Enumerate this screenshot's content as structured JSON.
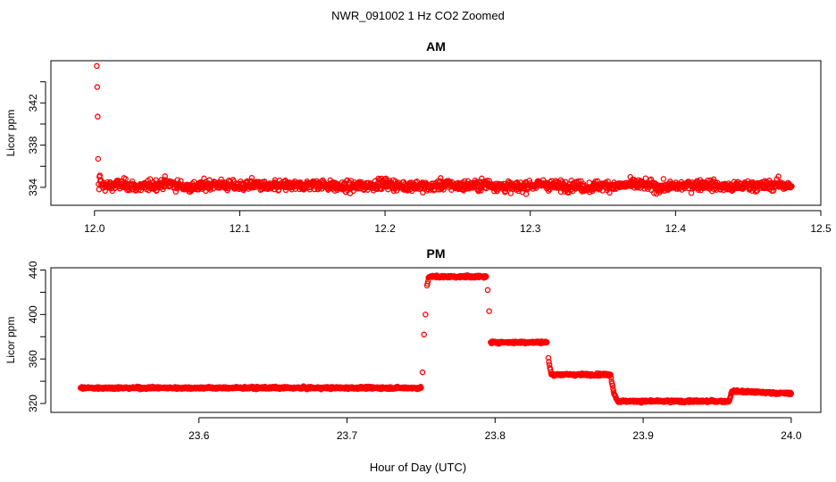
{
  "figure": {
    "title": "NWR_091002  1 Hz CO2 Zoomed",
    "xlabel": "Hour of Day (UTC)"
  },
  "colors": {
    "points": "#ff0000",
    "axes": "#000000",
    "background": "#ffffff"
  },
  "chart_data": [
    {
      "type": "scatter",
      "title": "AM",
      "xlabel": "",
      "ylabel": "Licor ppm",
      "xlim": [
        11.97,
        12.5
      ],
      "ylim": [
        332.3,
        346.0
      ],
      "xticks": [
        12.0,
        12.1,
        12.2,
        12.3,
        12.4,
        12.5
      ],
      "xtick_labels": [
        "12.0",
        "12.1",
        "12.2",
        "12.3",
        "12.4",
        "12.5"
      ],
      "yticks": [
        334,
        336,
        338,
        340,
        342,
        344
      ],
      "ytick_labels": [
        "334",
        "",
        "338",
        "",
        "342",
        ""
      ],
      "grid": false,
      "series": [
        {
          "marker": "open-circle",
          "color": "#ff0000",
          "x": [
            12.0016,
            12.0019,
            12.0022,
            12.0025,
            12.0028,
            12.0031,
            12.0034,
            12.004,
            12.005,
            12.01,
            12.02,
            12.03,
            12.04,
            12.05,
            12.06,
            12.07,
            12.08,
            12.09,
            12.1,
            12.11,
            12.12,
            12.13,
            12.14,
            12.15,
            12.16,
            12.17,
            12.18,
            12.19,
            12.2,
            12.21,
            12.22,
            12.23,
            12.24,
            12.25,
            12.26,
            12.27,
            12.28,
            12.29,
            12.3,
            12.31,
            12.32,
            12.33,
            12.34,
            12.35,
            12.36,
            12.37,
            12.38,
            12.39,
            12.4,
            12.41,
            12.42,
            12.43,
            12.44,
            12.45,
            12.46,
            12.47,
            12.48
          ],
          "y": [
            345.5,
            343.5,
            340.7,
            336.7,
            334.3,
            333.8,
            335.0,
            334.6,
            334.2,
            334.1,
            334.3,
            334.0,
            334.2,
            334.4,
            334.1,
            334.0,
            334.3,
            334.2,
            334.1,
            334.3,
            334.0,
            334.2,
            334.1,
            334.3,
            334.2,
            334.0,
            334.1,
            334.2,
            334.4,
            334.1,
            334.2,
            334.0,
            334.3,
            334.1,
            334.2,
            334.3,
            334.1,
            334.0,
            334.2,
            334.3,
            334.1,
            334.2,
            334.0,
            334.2,
            334.1,
            334.3,
            334.2,
            334.0,
            334.1,
            334.2,
            334.3,
            334.1,
            334.0,
            334.2,
            334.1,
            334.3,
            334.1
          ],
          "noise_sd": 0.35
        }
      ]
    },
    {
      "type": "scatter",
      "title": "PM",
      "xlabel": "",
      "ylabel": "Licor ppm",
      "xlim": [
        23.5,
        24.02
      ],
      "ylim": [
        312,
        442
      ],
      "xticks": [
        23.6,
        23.7,
        23.8,
        23.9,
        24.0
      ],
      "xtick_labels": [
        "23.6",
        "23.7",
        "23.8",
        "23.9",
        "24.0"
      ],
      "yticks": [
        320,
        340,
        360,
        380,
        400,
        420,
        440
      ],
      "ytick_labels": [
        "320",
        "",
        "360",
        "",
        "400",
        "",
        "440"
      ],
      "grid": false,
      "series": [
        {
          "marker": "open-circle",
          "color": "#ff0000",
          "x": [
            23.52,
            23.75,
            23.751,
            23.752,
            23.753,
            23.754,
            23.755,
            23.756,
            23.757,
            23.794,
            23.795,
            23.796,
            23.797,
            23.835,
            23.836,
            23.837,
            23.838,
            23.878,
            23.879,
            23.88,
            23.881,
            23.882,
            23.883,
            23.958,
            23.96,
            24.0
          ],
          "y": [
            334,
            334,
            348,
            382,
            400,
            426,
            433,
            434,
            434,
            434,
            422,
            403,
            375,
            375,
            361,
            352,
            346,
            346,
            338,
            331,
            327,
            324,
            322,
            322,
            331,
            329
          ],
          "noise_sd": 0.7
        }
      ]
    }
  ]
}
